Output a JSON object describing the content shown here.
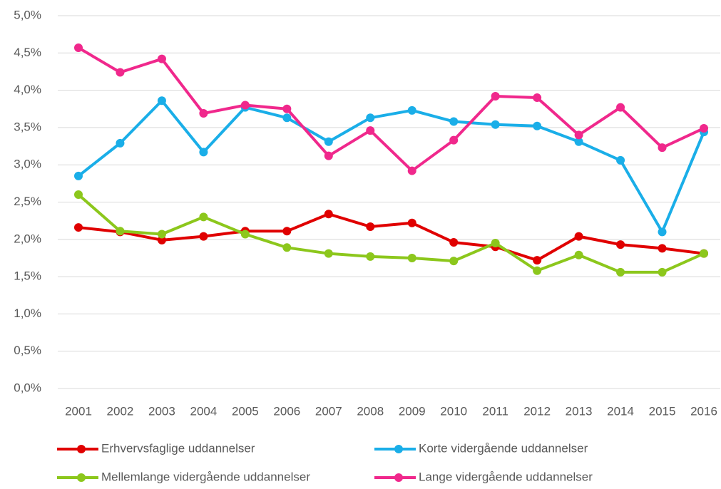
{
  "chart_data": {
    "type": "line",
    "categories": [
      "2001",
      "2002",
      "2003",
      "2004",
      "2005",
      "2006",
      "2007",
      "2008",
      "2009",
      "2010",
      "2011",
      "2012",
      "2013",
      "2014",
      "2015",
      "2016"
    ],
    "series": [
      {
        "name": "Erhvervsfaglige uddannelser",
        "color": "#e00000",
        "values": [
          2.16,
          2.1,
          1.99,
          2.04,
          2.11,
          2.11,
          2.34,
          2.17,
          2.22,
          1.96,
          1.9,
          1.72,
          2.04,
          1.93,
          1.88,
          1.81
        ]
      },
      {
        "name": "Korte vidergående uddannelser",
        "color": "#1aaee8",
        "values": [
          2.85,
          3.29,
          3.86,
          3.17,
          3.77,
          3.63,
          3.31,
          3.63,
          3.73,
          3.58,
          3.54,
          3.52,
          3.31,
          3.06,
          2.1,
          3.44
        ]
      },
      {
        "name": "Mellemlange vidergående uddannelser",
        "color": "#8cc71c",
        "values": [
          2.6,
          2.11,
          2.07,
          2.3,
          2.07,
          1.89,
          1.81,
          1.77,
          1.75,
          1.71,
          1.95,
          1.58,
          1.79,
          1.56,
          1.56,
          1.81
        ]
      },
      {
        "name": "Lange vidergående uddannelser",
        "color": "#f0288c",
        "values": [
          4.57,
          4.24,
          4.42,
          3.69,
          3.8,
          3.75,
          3.12,
          3.46,
          2.92,
          3.33,
          3.92,
          3.9,
          3.4,
          3.77,
          3.23,
          3.49
        ]
      }
    ],
    "ylim": [
      0,
      5
    ],
    "yticks": [
      {
        "value": 0,
        "label": "0,0%"
      },
      {
        "value": 0.5,
        "label": "0,5%"
      },
      {
        "value": 1,
        "label": "1,0%"
      },
      {
        "value": 1.5,
        "label": "1,5%"
      },
      {
        "value": 2,
        "label": "2,0%"
      },
      {
        "value": 2.5,
        "label": "2,5%"
      },
      {
        "value": 3,
        "label": "3,0%"
      },
      {
        "value": 3.5,
        "label": "3,5%"
      },
      {
        "value": 4,
        "label": "4,0%"
      },
      {
        "value": 4.5,
        "label": "4,5%"
      },
      {
        "value": 5,
        "label": "5,0%"
      }
    ],
    "grid": true,
    "legend": "bottom"
  }
}
